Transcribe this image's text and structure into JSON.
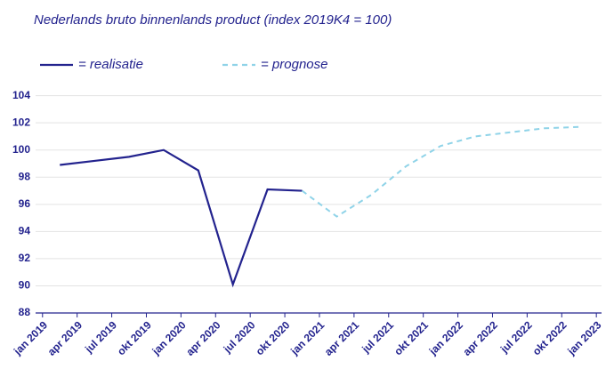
{
  "chart_data": {
    "type": "line",
    "title": "Nederlands bruto binnenlands product (index 2019K4 = 100)",
    "ylim": [
      88,
      104.5
    ],
    "yticks": [
      88,
      90,
      92,
      94,
      96,
      98,
      100,
      102,
      104
    ],
    "grid": true,
    "xlim": [
      -0.2,
      16.15
    ],
    "xticks": [
      {
        "value": 0,
        "label": "jan 2019"
      },
      {
        "value": 1,
        "label": "apr 2019"
      },
      {
        "value": 2,
        "label": "jul 2019"
      },
      {
        "value": 3,
        "label": "okt 2019"
      },
      {
        "value": 4,
        "label": "jan 2020"
      },
      {
        "value": 5,
        "label": "apr 2020"
      },
      {
        "value": 6,
        "label": "jul 2020"
      },
      {
        "value": 7,
        "label": "okt 2020"
      },
      {
        "value": 8,
        "label": "jan 2021"
      },
      {
        "value": 9,
        "label": "apr 2021"
      },
      {
        "value": 10,
        "label": "jul 2021"
      },
      {
        "value": 11,
        "label": "okt 2021"
      },
      {
        "value": 12,
        "label": "jan 2022"
      },
      {
        "value": 13,
        "label": "apr 2022"
      },
      {
        "value": 14,
        "label": "jul 2022"
      },
      {
        "value": 15,
        "label": "okt 2022"
      },
      {
        "value": 16,
        "label": "jan 2023"
      }
    ],
    "series": [
      {
        "name": "= realisatie",
        "color": "#23238e",
        "dashed": false,
        "x": [
          0.5,
          1.5,
          2.5,
          3.5,
          4.5,
          5.5,
          6.5,
          7.5
        ],
        "values": [
          98.9,
          99.2,
          99.5,
          100.0,
          98.5,
          90.1,
          97.1,
          97.0
        ]
      },
      {
        "name": "= prognose",
        "color": "#8fd3e8",
        "dashed": true,
        "x": [
          7.5,
          8.5,
          9.5,
          10.5,
          11.5,
          12.5,
          13.5,
          14.5,
          15.5
        ],
        "values": [
          97.0,
          95.1,
          96.7,
          98.8,
          100.3,
          101.0,
          101.3,
          101.6,
          101.7
        ]
      }
    ]
  }
}
